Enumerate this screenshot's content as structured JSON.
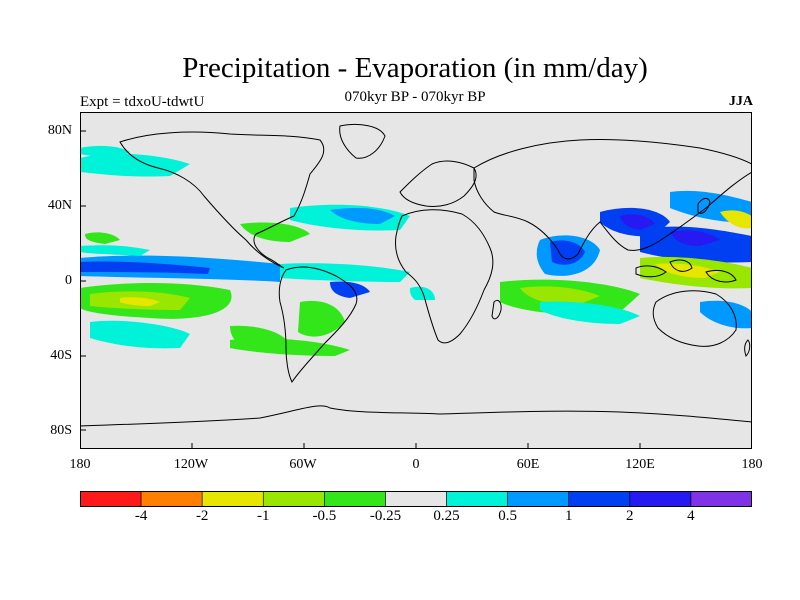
{
  "title": "Precipitation - Evaporation (in mm/day)",
  "subtitle": "070kyr BP - 070kyr BP",
  "left_label": "Expt = tdxoU-tdwtU",
  "right_label": "JJA",
  "lat_labels": [
    "80N",
    "40N",
    "0",
    "40S",
    "80S"
  ],
  "lon_labels": [
    "180",
    "120W",
    "60W",
    "0",
    "60E",
    "120E",
    "180"
  ],
  "colorbar": {
    "labels": [
      "-4",
      "-2",
      "-1",
      "-0.5",
      "-0.25",
      "0.25",
      "0.5",
      "1",
      "2",
      "4"
    ],
    "colors": [
      "#ff1a1a",
      "#ff8000",
      "#e6e600",
      "#99e600",
      "#33e61a",
      "#e6e6e6",
      "#00f2d9",
      "#0099ff",
      "#0040f2",
      "#2619f2",
      "#8033e6"
    ]
  },
  "colors": {
    "land_background": "#e6e6e6",
    "coast": "#000000"
  }
}
